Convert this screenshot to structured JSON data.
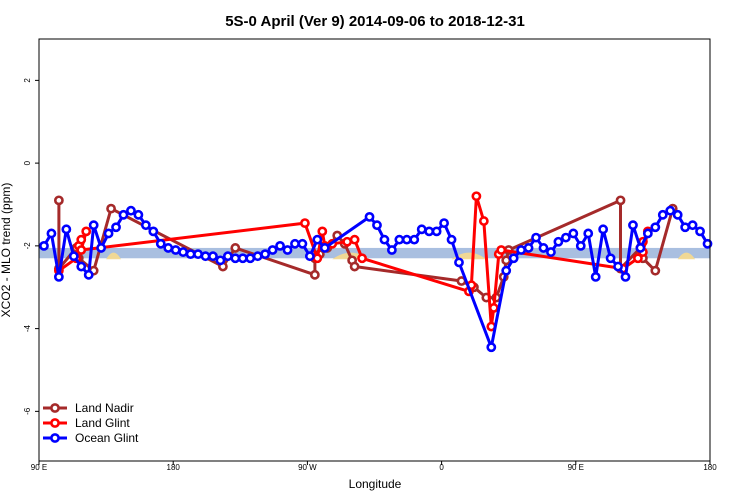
{
  "chart_data": {
    "type": "line",
    "title": "5S-0 April (Ver 9)   2014-09-06 to 2018-12-31",
    "xlabel": "Longitude",
    "ylabel": "XCO2 - MLO trend (ppm)",
    "xlim": [
      -90,
      180
    ],
    "ylim": [
      -7.2,
      3
    ],
    "x_ticks": [
      {
        "value": -90,
        "label": "90 E"
      },
      {
        "value": -36,
        "label": "180"
      },
      {
        "value": 18,
        "label": "90 W"
      },
      {
        "value": 72,
        "label": "0"
      },
      {
        "value": 126,
        "label": "90 E"
      },
      {
        "value": 180,
        "label": "180"
      }
    ],
    "y_ticks": [
      {
        "value": 2,
        "label": "2"
      },
      {
        "value": 0,
        "label": "0"
      },
      {
        "value": -2,
        "label": "-2"
      },
      {
        "value": -4,
        "label": "-4"
      },
      {
        "value": -6,
        "label": "-6"
      }
    ],
    "grid": false,
    "legend_position": "bottom-left",
    "reference_band": {
      "y_min": -2.3,
      "y_max": -2.05,
      "color": "#a9bfe0"
    },
    "highlight_color": "#f3d990",
    "highlight_regions": [
      {
        "x_min": -63,
        "x_max": -57
      },
      {
        "x_min": 28,
        "x_max": 43
      },
      {
        "x_min": 76,
        "x_max": 90
      },
      {
        "x_min": 167,
        "x_max": 174
      }
    ],
    "series": [
      {
        "name": "Land Nadir",
        "color": "#a52a2a",
        "points": [
          [
            -82,
            -0.9
          ],
          [
            -82,
            -2.55
          ],
          [
            -75,
            -2.05
          ],
          [
            -74,
            -2.3
          ],
          [
            -68,
            -2.6
          ],
          [
            -61,
            -1.1
          ],
          [
            -16,
            -2.5
          ],
          [
            -11,
            -2.05
          ],
          [
            21,
            -2.7
          ],
          [
            21,
            -2.3
          ],
          [
            23,
            -2.2
          ],
          [
            26,
            -2.05
          ],
          [
            30,
            -1.75
          ],
          [
            33,
            -1.95
          ],
          [
            36,
            -2.35
          ],
          [
            37,
            -2.5
          ],
          [
            80,
            -2.85
          ],
          [
            85,
            -3.0
          ],
          [
            90,
            -3.25
          ],
          [
            94,
            -3.25
          ],
          [
            97,
            -2.75
          ],
          [
            98,
            -2.35
          ],
          [
            99,
            -2.1
          ],
          [
            144,
            -0.9
          ],
          [
            144,
            -2.55
          ],
          [
            152,
            -2.05
          ],
          [
            153,
            -2.3
          ],
          [
            158,
            -2.6
          ],
          [
            165,
            -1.1
          ]
        ]
      },
      {
        "name": "Land Glint",
        "color": "#ff0000",
        "points": [
          [
            -82,
            -2.6
          ],
          [
            -75,
            -2.3
          ],
          [
            -74,
            -2.0
          ],
          [
            -73,
            -1.85
          ],
          [
            -71,
            -1.65
          ],
          [
            -73,
            -2.1
          ],
          [
            17,
            -1.45
          ],
          [
            22,
            -2.3
          ],
          [
            24,
            -1.65
          ],
          [
            25,
            -2.0
          ],
          [
            28,
            -1.95
          ],
          [
            34,
            -1.9
          ],
          [
            37,
            -1.85
          ],
          [
            40,
            -2.3
          ],
          [
            83,
            -3.1
          ],
          [
            84,
            -2.95
          ],
          [
            86,
            -0.8
          ],
          [
            89,
            -1.4
          ],
          [
            92,
            -3.95
          ],
          [
            93,
            -3.5
          ],
          [
            95,
            -2.2
          ],
          [
            96,
            -2.1
          ],
          [
            145,
            -2.55
          ],
          [
            151,
            -2.3
          ],
          [
            152,
            -2.05
          ],
          [
            153,
            -1.9
          ],
          [
            155,
            -1.65
          ],
          [
            153,
            -2.15
          ]
        ]
      },
      {
        "name": "Ocean Glint",
        "color": "#0000ff",
        "points": [
          [
            -88,
            -2.0
          ],
          [
            -85,
            -1.7
          ],
          [
            -82,
            -2.75
          ],
          [
            -79,
            -1.6
          ],
          [
            -76,
            -2.25
          ],
          [
            -73,
            -2.5
          ],
          [
            -70,
            -2.7
          ],
          [
            -68,
            -1.5
          ],
          [
            -65,
            -2.05
          ],
          [
            -62,
            -1.7
          ],
          [
            -59,
            -1.55
          ],
          [
            -56,
            -1.25
          ],
          [
            -53,
            -1.15
          ],
          [
            -50,
            -1.25
          ],
          [
            -47,
            -1.5
          ],
          [
            -44,
            -1.65
          ],
          [
            -41,
            -1.95
          ],
          [
            -38,
            -2.05
          ],
          [
            -35,
            -2.1
          ],
          [
            -32,
            -2.15
          ],
          [
            -29,
            -2.2
          ],
          [
            -26,
            -2.2
          ],
          [
            -23,
            -2.25
          ],
          [
            -20,
            -2.25
          ],
          [
            -17,
            -2.35
          ],
          [
            -14,
            -2.25
          ],
          [
            -11,
            -2.3
          ],
          [
            -8,
            -2.3
          ],
          [
            -5,
            -2.3
          ],
          [
            -2,
            -2.25
          ],
          [
            1,
            -2.2
          ],
          [
            4,
            -2.1
          ],
          [
            7,
            -2.0
          ],
          [
            10,
            -2.1
          ],
          [
            13,
            -1.95
          ],
          [
            16,
            -1.95
          ],
          [
            19,
            -2.25
          ],
          [
            22,
            -1.85
          ],
          [
            25,
            -2.05
          ],
          [
            43,
            -1.3
          ],
          [
            46,
            -1.5
          ],
          [
            49,
            -1.85
          ],
          [
            52,
            -2.1
          ],
          [
            55,
            -1.85
          ],
          [
            58,
            -1.85
          ],
          [
            61,
            -1.85
          ],
          [
            64,
            -1.6
          ],
          [
            67,
            -1.65
          ],
          [
            70,
            -1.65
          ],
          [
            73,
            -1.45
          ],
          [
            76,
            -1.85
          ],
          [
            79,
            -2.4
          ],
          [
            92,
            -4.45
          ],
          [
            98,
            -2.6
          ],
          [
            101,
            -2.3
          ],
          [
            104,
            -2.1
          ],
          [
            107,
            -2.05
          ],
          [
            110,
            -1.8
          ],
          [
            113,
            -2.05
          ],
          [
            116,
            -2.15
          ],
          [
            119,
            -1.9
          ],
          [
            122,
            -1.8
          ],
          [
            125,
            -1.7
          ],
          [
            128,
            -2.0
          ],
          [
            131,
            -1.7
          ],
          [
            134,
            -2.75
          ],
          [
            137,
            -1.6
          ],
          [
            140,
            -2.3
          ],
          [
            143,
            -2.5
          ],
          [
            146,
            -2.75
          ],
          [
            149,
            -1.5
          ],
          [
            152,
            -2.05
          ],
          [
            155,
            -1.7
          ],
          [
            158,
            -1.55
          ],
          [
            161,
            -1.25
          ],
          [
            164,
            -1.15
          ],
          [
            167,
            -1.25
          ],
          [
            170,
            -1.55
          ],
          [
            173,
            -1.5
          ],
          [
            176,
            -1.65
          ],
          [
            179,
            -1.95
          ]
        ]
      }
    ]
  }
}
